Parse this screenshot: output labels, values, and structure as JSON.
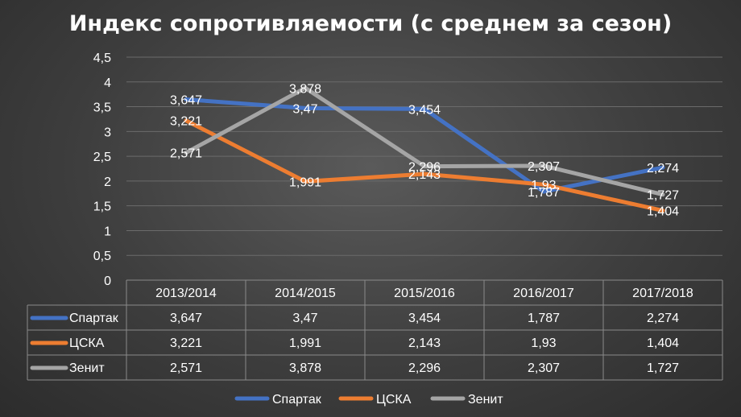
{
  "chart_data": {
    "type": "line",
    "title": "Индекс сопротивляемости (с среднем за сезон)",
    "categories": [
      "2013/2014",
      "2014/2015",
      "2015/2016",
      "2016/2017",
      "2017/2018"
    ],
    "series": [
      {
        "name": "Спартак",
        "color": "#4472c4",
        "values": [
          3.647,
          3.47,
          3.454,
          1.787,
          2.274
        ],
        "labels": [
          "3,647",
          "3,47",
          "3,454",
          "1,787",
          "2,274"
        ]
      },
      {
        "name": "ЦСКА",
        "color": "#ed7d31",
        "values": [
          3.221,
          1.991,
          2.143,
          1.93,
          1.404
        ],
        "labels": [
          "3,221",
          "1,991",
          "2,143",
          "1,93",
          "1,404"
        ]
      },
      {
        "name": "Зенит",
        "color": "#a5a5a5",
        "values": [
          2.571,
          3.878,
          2.296,
          2.307,
          1.727
        ],
        "labels": [
          "2,571",
          "3,878",
          "2,296",
          "2,307",
          "1,727"
        ]
      }
    ],
    "y_ticks": [
      "0",
      "0,5",
      "1",
      "1,5",
      "2",
      "2,5",
      "3",
      "3,5",
      "4",
      "4,5"
    ],
    "ylim": [
      0,
      4.5
    ],
    "grid": true,
    "legend": "bottom",
    "data_table": true
  }
}
